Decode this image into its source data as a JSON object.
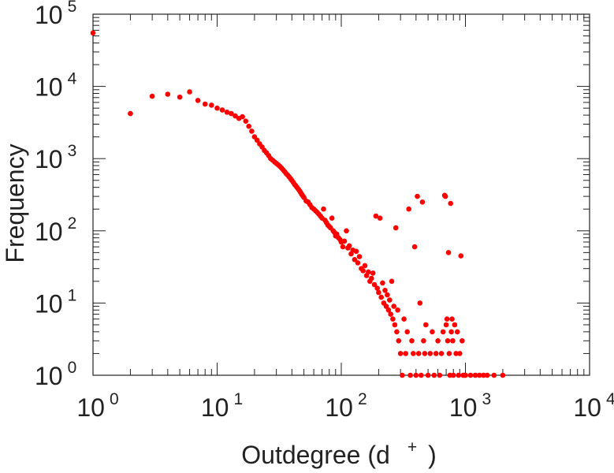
{
  "chart_data": {
    "type": "scatter",
    "xlabel": "Outdegree (d",
    "xlabel_sup": "+",
    "xlabel_close": ")",
    "ylabel": "Frequency",
    "xscale": "log",
    "yscale": "log",
    "xlim": [
      1,
      10000
    ],
    "ylim": [
      1,
      100000
    ],
    "grid": false,
    "marker_color": "#ff0000",
    "x_ticks": [
      {
        "base": "10",
        "exp": "0"
      },
      {
        "base": "10",
        "exp": "1"
      },
      {
        "base": "10",
        "exp": "2"
      },
      {
        "base": "10",
        "exp": "3"
      },
      {
        "base": "10",
        "exp": "4"
      }
    ],
    "y_ticks": [
      {
        "base": "10",
        "exp": "0"
      },
      {
        "base": "10",
        "exp": "1"
      },
      {
        "base": "10",
        "exp": "2"
      },
      {
        "base": "10",
        "exp": "3"
      },
      {
        "base": "10",
        "exp": "4"
      },
      {
        "base": "10",
        "exp": "5"
      }
    ],
    "points": [
      [
        1,
        55000
      ],
      [
        2,
        4200
      ],
      [
        3,
        7300
      ],
      [
        4,
        7800
      ],
      [
        5,
        7100
      ],
      [
        6,
        8400
      ],
      [
        7,
        6400
      ],
      [
        8,
        5700
      ],
      [
        9,
        5500
      ],
      [
        10,
        5000
      ],
      [
        11,
        4700
      ],
      [
        12,
        4400
      ],
      [
        13,
        4200
      ],
      [
        14,
        3900
      ],
      [
        15,
        3600
      ],
      [
        16,
        3800
      ],
      [
        17,
        3300
      ],
      [
        18,
        2800
      ],
      [
        19,
        2400
      ],
      [
        20,
        2000
      ],
      [
        21,
        1800
      ],
      [
        22,
        1600
      ],
      [
        23,
        1450
      ],
      [
        24,
        1300
      ],
      [
        25,
        1200
      ],
      [
        26,
        1100
      ],
      [
        27,
        1000
      ],
      [
        28,
        950
      ],
      [
        29,
        900
      ],
      [
        30,
        860
      ],
      [
        31,
        820
      ],
      [
        32,
        780
      ],
      [
        33,
        740
      ],
      [
        34,
        700
      ],
      [
        35,
        660
      ],
      [
        36,
        620
      ],
      [
        37,
        590
      ],
      [
        38,
        560
      ],
      [
        39,
        530
      ],
      [
        40,
        500
      ],
      [
        41,
        470
      ],
      [
        42,
        440
      ],
      [
        43,
        420
      ],
      [
        44,
        400
      ],
      [
        45,
        380
      ],
      [
        46,
        360
      ],
      [
        47,
        340
      ],
      [
        48,
        320
      ],
      [
        49,
        305
      ],
      [
        50,
        290
      ],
      [
        52,
        260
      ],
      [
        54,
        250
      ],
      [
        56,
        230
      ],
      [
        58,
        210
      ],
      [
        60,
        200
      ],
      [
        62,
        190
      ],
      [
        64,
        180
      ],
      [
        66,
        170
      ],
      [
        68,
        160
      ],
      [
        70,
        150
      ],
      [
        72,
        200
      ],
      [
        74,
        140
      ],
      [
        76,
        130
      ],
      [
        78,
        120
      ],
      [
        80,
        115
      ],
      [
        82,
        110
      ],
      [
        84,
        150
      ],
      [
        86,
        100
      ],
      [
        88,
        95
      ],
      [
        90,
        85
      ],
      [
        92,
        90
      ],
      [
        95,
        80
      ],
      [
        98,
        75
      ],
      [
        100,
        70
      ],
      [
        103,
        60
      ],
      [
        106,
        72
      ],
      [
        110,
        100
      ],
      [
        113,
        58
      ],
      [
        116,
        62
      ],
      [
        120,
        48
      ],
      [
        124,
        54
      ],
      [
        128,
        40
      ],
      [
        132,
        52
      ],
      [
        136,
        36
      ],
      [
        140,
        44
      ],
      [
        145,
        30
      ],
      [
        150,
        28
      ],
      [
        155,
        33
      ],
      [
        160,
        24
      ],
      [
        165,
        27
      ],
      [
        170,
        20
      ],
      [
        175,
        22
      ],
      [
        180,
        26
      ],
      [
        185,
        18
      ],
      [
        190,
        160
      ],
      [
        195,
        16
      ],
      [
        200,
        14
      ],
      [
        205,
        150
      ],
      [
        210,
        12
      ],
      [
        215,
        19
      ],
      [
        220,
        10
      ],
      [
        225,
        15
      ],
      [
        230,
        9
      ],
      [
        235,
        13
      ],
      [
        240,
        8
      ],
      [
        245,
        11
      ],
      [
        250,
        7
      ],
      [
        255,
        20
      ],
      [
        260,
        6
      ],
      [
        265,
        9
      ],
      [
        270,
        5
      ],
      [
        275,
        110
      ],
      [
        280,
        4
      ],
      [
        285,
        8
      ],
      [
        290,
        3
      ],
      [
        300,
        2
      ],
      [
        310,
        1
      ],
      [
        320,
        6
      ],
      [
        330,
        2
      ],
      [
        340,
        4
      ],
      [
        350,
        200
      ],
      [
        360,
        1
      ],
      [
        370,
        3
      ],
      [
        380,
        2
      ],
      [
        390,
        60
      ],
      [
        400,
        1
      ],
      [
        410,
        300
      ],
      [
        420,
        2
      ],
      [
        430,
        10
      ],
      [
        440,
        1
      ],
      [
        450,
        250
      ],
      [
        460,
        3
      ],
      [
        470,
        2
      ],
      [
        480,
        5
      ],
      [
        500,
        1
      ],
      [
        520,
        2
      ],
      [
        540,
        4
      ],
      [
        560,
        1
      ],
      [
        580,
        2
      ],
      [
        600,
        3
      ],
      [
        620,
        1
      ],
      [
        640,
        2
      ],
      [
        660,
        4
      ],
      [
        680,
        310
      ],
      [
        690,
        300
      ],
      [
        700,
        5
      ],
      [
        710,
        6
      ],
      [
        720,
        3
      ],
      [
        730,
        50
      ],
      [
        740,
        2
      ],
      [
        750,
        1
      ],
      [
        760,
        240
      ],
      [
        770,
        4
      ],
      [
        780,
        6
      ],
      [
        790,
        3
      ],
      [
        800,
        1
      ],
      [
        820,
        5
      ],
      [
        840,
        2
      ],
      [
        860,
        4
      ],
      [
        880,
        1
      ],
      [
        900,
        2
      ],
      [
        920,
        45
      ],
      [
        940,
        3
      ],
      [
        960,
        1
      ],
      [
        980,
        1
      ],
      [
        1000,
        1
      ],
      [
        1100,
        1
      ],
      [
        1200,
        1
      ],
      [
        1300,
        1
      ],
      [
        1400,
        1
      ],
      [
        1500,
        1
      ],
      [
        1700,
        1
      ],
      [
        2000,
        1
      ]
    ]
  }
}
